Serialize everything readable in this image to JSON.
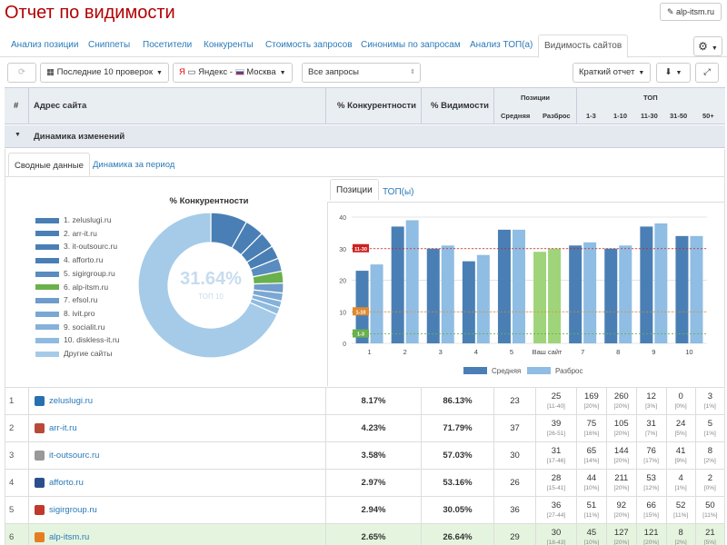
{
  "page_title": "Отчет по видимости",
  "site_button": "alp-itsm.ru",
  "tabs": [
    "Анализ позиции",
    "Сниппеты",
    "Посетители",
    "Конкуренты",
    "Стоимость запросов",
    "Синонимы по запросам",
    "Анализ ТОП(а)",
    "Видимость сайтов"
  ],
  "toolbar": {
    "checks": "Последние 10 проверок",
    "engine": "Яндекс",
    "region": "Москва",
    "queries": "Все запросы",
    "report": "Краткий отчет"
  },
  "header": {
    "num": "#",
    "site": "Адрес сайта",
    "competition": "% Конкурентности",
    "visibility": "% Видимости",
    "positions": "Позиции",
    "avg": "Средняя",
    "spread": "Разброс",
    "top": "ТОП",
    "top_cols": [
      "1-3",
      "1-10",
      "11-30",
      "31-50",
      "50+"
    ]
  },
  "dynamics_label": "Динамика изменений",
  "subtabs": [
    "Сводные данные",
    "Динамика за период"
  ],
  "chart_tabs": [
    "Позиции",
    "ТОП(ы)"
  ],
  "pie_title": "% Конкурентности",
  "pie_center": "31.64%",
  "pie_center_sub": "ТОП 10",
  "legend": [
    {
      "label": "1. zeluslugi.ru",
      "color": "#4a7fb5"
    },
    {
      "label": "2. arr-it.ru",
      "color": "#4a7fb5"
    },
    {
      "label": "3. it-outsourc.ru",
      "color": "#4a7fb5"
    },
    {
      "label": "4. afforto.ru",
      "color": "#4a7fb5"
    },
    {
      "label": "5. sigirgroup.ru",
      "color": "#5a8cbf"
    },
    {
      "label": "6. alp-itsm.ru",
      "color": "#6ab04c"
    },
    {
      "label": "7. efsol.ru",
      "color": "#6f9ccb"
    },
    {
      "label": "8. ivit.pro",
      "color": "#7aa8d4"
    },
    {
      "label": "9. socialit.ru",
      "color": "#85b1da"
    },
    {
      "label": "10. diskless-it.ru",
      "color": "#90bbe0"
    },
    {
      "label": "Другие сайты",
      "color": "#a5cbe8"
    }
  ],
  "chart_data": [
    {
      "type": "pie",
      "title": "% Конкурентности",
      "categories": [
        "1. zeluslugi.ru",
        "2. arr-it.ru",
        "3. it-outsourc.ru",
        "4. afforto.ru",
        "5. sigirgroup.ru",
        "6. alp-itsm.ru",
        "7. efsol.ru",
        "8. ivit.pro",
        "9. socialit.ru",
        "10. diskless-it.ru",
        "Другие сайты"
      ],
      "values": [
        8.17,
        4.23,
        3.58,
        2.97,
        2.94,
        2.65,
        2.2,
        1.8,
        1.5,
        1.6,
        68.36
      ],
      "colors": [
        "#4a7fb5",
        "#4a7fb5",
        "#4a7fb5",
        "#4a7fb5",
        "#5a8cbf",
        "#6ab04c",
        "#6f9ccb",
        "#7aa8d4",
        "#85b1da",
        "#90bbe0",
        "#a5cbe8"
      ]
    },
    {
      "type": "bar",
      "categories": [
        "1",
        "2",
        "3",
        "4",
        "5",
        "Ваш сайт",
        "7",
        "8",
        "9",
        "10"
      ],
      "series": [
        {
          "name": "Средняя",
          "values": [
            23,
            37,
            30,
            26,
            36,
            29,
            31,
            30,
            37,
            34
          ],
          "color": "#4a7fb5"
        },
        {
          "name": "Разброс",
          "values": [
            25,
            39,
            31,
            28,
            36,
            30,
            32,
            31,
            38,
            34
          ],
          "color": "#8fbde3"
        }
      ],
      "highlight_index": 5,
      "highlight_colors": [
        "#9fd47a",
        "#9fd47a"
      ],
      "ylim": [
        0,
        40
      ],
      "yticks": [
        0,
        10,
        20,
        30,
        40
      ],
      "reference_lines": [
        {
          "label": "11-30",
          "value": 30,
          "color": "#cc2222"
        },
        {
          "label": "1-10",
          "value": 10,
          "color": "#e08a2e"
        },
        {
          "label": "1-3",
          "value": 3,
          "color": "#6ab04c"
        }
      ],
      "grid": true,
      "legend": "bottom"
    }
  ],
  "rows": [
    {
      "n": "1",
      "site": "zeluslugi.ru",
      "comp": "8.17%",
      "vis": "86.13%",
      "avg": "23",
      "spread": "25",
      "spread_sub": "[11-40]",
      "t": [
        "169",
        "260",
        "12",
        "0",
        "3"
      ],
      "ts": [
        "[20%]",
        "[20%]",
        "[3%]",
        "[0%]",
        "[1%]"
      ],
      "icon": "#2a6fb0"
    },
    {
      "n": "2",
      "site": "arr-it.ru",
      "comp": "4.23%",
      "vis": "71.79%",
      "avg": "37",
      "spread": "39",
      "spread_sub": "[26-51]",
      "t": [
        "75",
        "105",
        "31",
        "24",
        "5"
      ],
      "ts": [
        "[16%]",
        "[20%]",
        "[7%]",
        "[5%]",
        "[1%]"
      ],
      "icon": "#b84a3a"
    },
    {
      "n": "3",
      "site": "it-outsourc.ru",
      "comp": "3.58%",
      "vis": "57.03%",
      "avg": "30",
      "spread": "31",
      "spread_sub": "[17-46]",
      "t": [
        "65",
        "144",
        "76",
        "41",
        "8"
      ],
      "ts": [
        "[14%]",
        "[20%]",
        "[17%]",
        "[9%]",
        "[2%]"
      ],
      "icon": "#999999"
    },
    {
      "n": "4",
      "site": "afforto.ru",
      "comp": "2.97%",
      "vis": "53.16%",
      "avg": "26",
      "spread": "28",
      "spread_sub": "[15-41]",
      "t": [
        "44",
        "211",
        "53",
        "4",
        "2"
      ],
      "ts": [
        "[10%]",
        "[20%]",
        "[12%]",
        "[1%]",
        "[0%]"
      ],
      "icon": "#2a4f8c"
    },
    {
      "n": "5",
      "site": "sigirgroup.ru",
      "comp": "2.94%",
      "vis": "30.05%",
      "avg": "36",
      "spread": "36",
      "spread_sub": "[27-44]",
      "t": [
        "51",
        "92",
        "66",
        "52",
        "50"
      ],
      "ts": [
        "[11%]",
        "[20%]",
        "[15%]",
        "[11%]",
        "[11%]"
      ],
      "icon": "#c0392b"
    },
    {
      "n": "6",
      "site": "alp-itsm.ru",
      "comp": "2.65%",
      "vis": "26.64%",
      "avg": "29",
      "spread": "30",
      "spread_sub": "[18-43]",
      "t": [
        "45",
        "127",
        "121",
        "8",
        "21"
      ],
      "ts": [
        "[10%]",
        "[20%]",
        "[20%]",
        "[2%]",
        "[5%]"
      ],
      "icon": "#e67e22"
    }
  ]
}
